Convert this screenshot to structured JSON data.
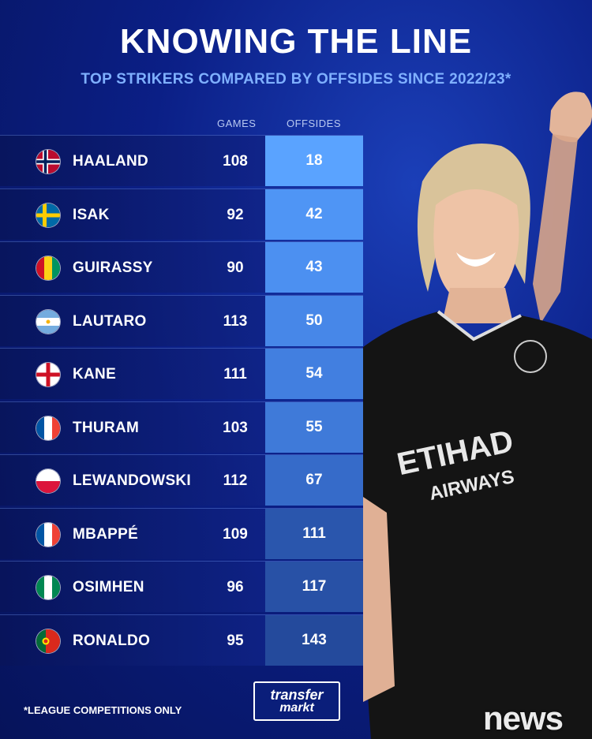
{
  "title": "KNOWING THE LINE",
  "subtitle": "TOP STRIKERS COMPARED BY OFFSIDES SINCE 2022/23*",
  "columns": {
    "games": "GAMES",
    "offsides": "OFFSIDES"
  },
  "rows": [
    {
      "name": "HAALAND",
      "games": "108",
      "offsides": "18",
      "flag": "norway-flag-icon"
    },
    {
      "name": "ISAK",
      "games": "92",
      "offsides": "42",
      "flag": "sweden-flag-icon"
    },
    {
      "name": "GUIRASSY",
      "games": "90",
      "offsides": "43",
      "flag": "guinea-flag-icon"
    },
    {
      "name": "LAUTARO",
      "games": "113",
      "offsides": "50",
      "flag": "argentina-flag-icon"
    },
    {
      "name": "KANE",
      "games": "111",
      "offsides": "54",
      "flag": "england-flag-icon"
    },
    {
      "name": "THURAM",
      "games": "103",
      "offsides": "55",
      "flag": "france-flag-icon"
    },
    {
      "name": "LEWANDOWSKI",
      "games": "112",
      "offsides": "67",
      "flag": "poland-flag-icon"
    },
    {
      "name": "MBAPPÉ",
      "games": "109",
      "offsides": "111",
      "flag": "france-flag-icon"
    },
    {
      "name": "OSIMHEN",
      "games": "96",
      "offsides": "117",
      "flag": "nigeria-flag-icon"
    },
    {
      "name": "RONALDO",
      "games": "95",
      "offsides": "143",
      "flag": "portugal-flag-icon"
    }
  ],
  "offside_colors": [
    "#5aa3ff",
    "#4f95f5",
    "#4c90f1",
    "#4787e8",
    "#427fe0",
    "#3f7ad9",
    "#366bc9",
    "#2a56ad",
    "#2851a6",
    "#244a9c"
  ],
  "footnote": "*LEAGUE COMPETITIONS ONLY",
  "logo": {
    "line1": "transfer",
    "line2": "markt"
  },
  "watermark": "news"
}
